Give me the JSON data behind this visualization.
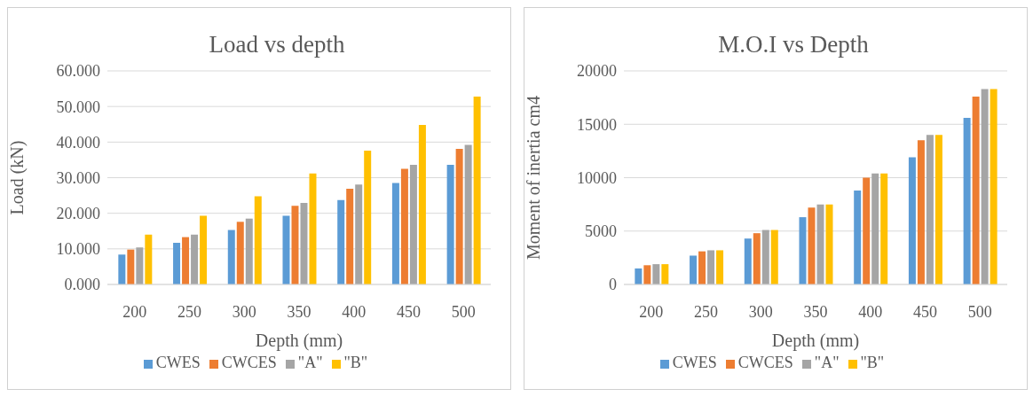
{
  "chart_data": [
    {
      "type": "bar",
      "title": "Load vs depth",
      "xlabel": "Depth (mm)",
      "ylabel": "Load (kN)",
      "categories": [
        "200",
        "250",
        "300",
        "350",
        "400",
        "450",
        "500"
      ],
      "series": [
        {
          "name": "CWES",
          "color": "#5b9bd5",
          "values": [
            8.4,
            11.7,
            15.3,
            19.3,
            23.7,
            28.5,
            33.6
          ]
        },
        {
          "name": "CWCES",
          "color": "#ed7d31",
          "values": [
            9.8,
            13.3,
            17.6,
            22.1,
            26.9,
            32.5,
            38.1
          ]
        },
        {
          "name": "\"A\"",
          "color": "#a5a5a5",
          "values": [
            10.4,
            14.0,
            18.5,
            22.9,
            28.1,
            33.6,
            39.2
          ]
        },
        {
          "name": "\"B\"",
          "color": "#ffc000",
          "values": [
            14.0,
            19.3,
            24.8,
            31.2,
            37.6,
            44.8,
            52.8
          ]
        }
      ],
      "ylim": [
        0,
        60
      ],
      "yticks": [
        {
          "value": 0,
          "label": "0.000"
        },
        {
          "value": 10,
          "label": "10.000"
        },
        {
          "value": 20,
          "label": "20.000"
        },
        {
          "value": 30,
          "label": "30.000"
        },
        {
          "value": 40,
          "label": "40.000"
        },
        {
          "value": 50,
          "label": "50.000"
        },
        {
          "value": 60,
          "label": "60.000"
        }
      ],
      "grid": "y",
      "legend": "bottom"
    },
    {
      "type": "bar",
      "title": "M.O.I vs Depth",
      "xlabel": "Depth  (mm)",
      "ylabel": "Moment of inertia cm4",
      "categories": [
        "200",
        "250",
        "300",
        "350",
        "400",
        "450",
        "500"
      ],
      "series": [
        {
          "name": "CWES",
          "color": "#5b9bd5",
          "values": [
            1500,
            2700,
            4300,
            6300,
            8800,
            11900,
            15600
          ]
        },
        {
          "name": "CWCES",
          "color": "#ed7d31",
          "values": [
            1800,
            3100,
            4800,
            7200,
            10000,
            13500,
            17600
          ]
        },
        {
          "name": "\"A\"",
          "color": "#a5a5a5",
          "values": [
            1900,
            3200,
            5100,
            7500,
            10400,
            14000,
            18300
          ]
        },
        {
          "name": "\"B\"",
          "color": "#ffc000",
          "values": [
            1900,
            3200,
            5100,
            7500,
            10400,
            14000,
            18300
          ]
        }
      ],
      "ylim": [
        0,
        20000
      ],
      "yticks": [
        0,
        5000,
        10000,
        15000,
        20000
      ],
      "grid": "y",
      "legend": "bottom"
    }
  ]
}
